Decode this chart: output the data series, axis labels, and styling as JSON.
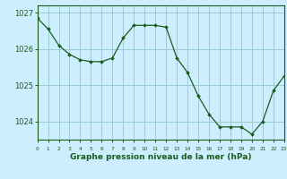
{
  "hours": [
    0,
    1,
    2,
    3,
    4,
    5,
    6,
    7,
    8,
    9,
    10,
    11,
    12,
    13,
    14,
    15,
    16,
    17,
    18,
    19,
    20,
    21,
    22,
    23
  ],
  "pressure": [
    1026.85,
    1026.55,
    1026.1,
    1025.85,
    1025.7,
    1025.65,
    1025.65,
    1025.75,
    1026.3,
    1026.65,
    1026.65,
    1026.65,
    1026.6,
    1025.75,
    1025.35,
    1024.7,
    1024.2,
    1023.85,
    1023.85,
    1023.85,
    1023.65,
    1024.0,
    1024.85,
    1025.25
  ],
  "ylim_min": 1023.5,
  "ylim_max": 1027.2,
  "yticks": [
    1024,
    1025,
    1026,
    1027
  ],
  "line_color": "#1a5c1a",
  "marker_color": "#1a5c1a",
  "bg_color": "#cceeff",
  "plot_bg_color": "#cceeff",
  "grid_color": "#99cccc",
  "tick_label_color": "#1a5c1a",
  "xlabel": "Graphe pression niveau de la mer (hPa)",
  "xlabel_color": "#1a5c1a"
}
